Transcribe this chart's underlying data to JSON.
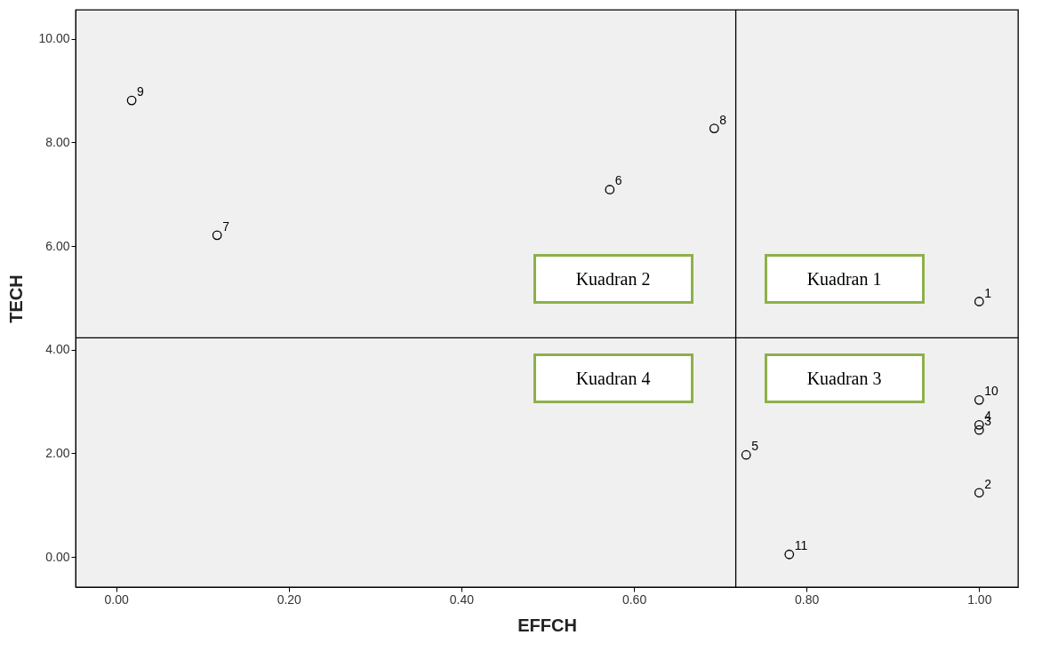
{
  "chart_data": {
    "type": "scatter",
    "xlabel": "EFFCH",
    "ylabel": "TECH",
    "x": [
      1.0,
      1.0,
      1.0,
      1.0,
      0.73,
      0.572,
      0.117,
      0.693,
      0.018,
      1.0,
      0.78
    ],
    "series": [
      {
        "color": "#000000",
        "values": [
          4.93,
          1.24,
          2.45,
          2.55,
          1.97,
          7.09,
          6.21,
          8.27,
          8.81,
          3.03,
          0.05
        ]
      }
    ],
    "xlim": [
      -0.047,
      1.045
    ],
    "ylim": [
      -0.58,
      10.56
    ],
    "xticks": [
      {
        "value": 0,
        "label": "0.00"
      },
      {
        "value": 0.2,
        "label": "0.20"
      },
      {
        "value": 0.4,
        "label": "0.40"
      },
      {
        "value": 0.6,
        "label": "0.60"
      },
      {
        "value": 0.8,
        "label": "0.80"
      },
      {
        "value": 1,
        "label": "1.00"
      }
    ],
    "yticks": [
      {
        "value": 0,
        "label": "0.00"
      },
      {
        "value": 2,
        "label": "2.00"
      },
      {
        "value": 4,
        "label": "4.00"
      },
      {
        "value": 6,
        "label": "6.00"
      },
      {
        "value": 8,
        "label": "8.00"
      },
      {
        "value": 10,
        "label": "10.00"
      }
    ],
    "ref_lines": [
      {
        "axis": "x",
        "value": 0.718,
        "color": "#000000"
      },
      {
        "axis": "y",
        "value": 4.23,
        "color": "#000000"
      }
    ],
    "annotations": [
      "Kuadran 2",
      "Kuadran 1",
      "Kuadran 4",
      "Kuadran 3",
      {
        "text": "1",
        "x": 1.0,
        "y": 4.93
      },
      {
        "text": "2",
        "x": 1.0,
        "y": 1.24
      },
      {
        "text": "3",
        "x": 1.0,
        "y": 2.45
      },
      {
        "text": "4",
        "x": 1.0,
        "y": 2.55
      },
      {
        "text": "5",
        "x": 0.73,
        "y": 1.97
      },
      {
        "text": "6",
        "x": 0.572,
        "y": 7.09
      },
      {
        "text": "7",
        "x": 0.117,
        "y": 6.21
      },
      {
        "text": "8",
        "x": 0.693,
        "y": 8.27
      },
      {
        "text": "9",
        "x": 0.018,
        "y": 8.81
      },
      {
        "text": "10",
        "x": 1.0,
        "y": 3.03
      },
      {
        "text": "11",
        "x": 0.78,
        "y": 0.05
      }
    ],
    "grid": false,
    "marker": "circle"
  }
}
